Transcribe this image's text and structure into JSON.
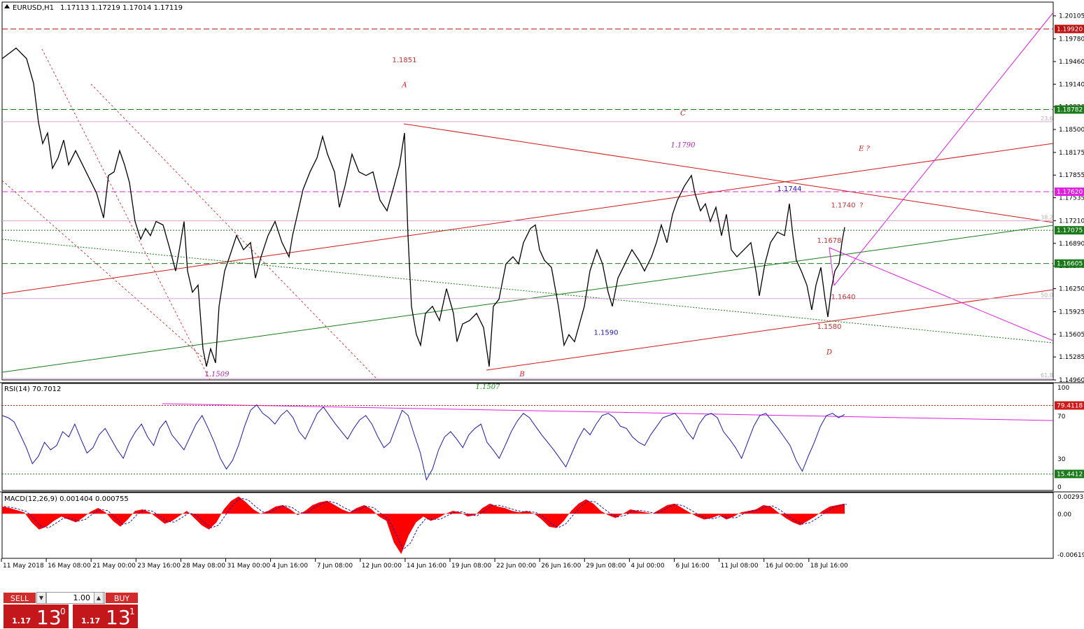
{
  "window": {
    "symbol_title": "EURUSD,H1",
    "ohlc": "1.17113 1.17219 1.17014 1.17119"
  },
  "trade_panel": {
    "sell_label": "SELL",
    "buy_label": "BUY",
    "lot_value": "1.00",
    "sell_price_small": "1.17",
    "sell_price_big": "13",
    "sell_price_sup": "0",
    "buy_price_small": "1.17",
    "buy_price_big": "13",
    "buy_price_sup": "1"
  },
  "colors": {
    "sell_bg": "#c3171c",
    "red_line": "#d01818",
    "green_line": "#1a7a1a",
    "magenta": "#e020e0",
    "rsi_line": "#1a1ab0",
    "macd_fill": "#ff0000",
    "price_line": "#000000"
  },
  "chart_data": [
    {
      "type": "candlestick-line",
      "symbol": "EURUSD",
      "timeframe": "H1",
      "ylim": [
        1.1496,
        1.203
      ],
      "y_ticks": [
        "1.20105",
        "1.19780",
        "1.19460",
        "1.19140",
        "1.18820",
        "1.18500",
        "1.18175",
        "1.17855",
        "1.17535",
        "1.17210",
        "1.16890",
        "1.16570",
        "1.16250",
        "1.15925",
        "1.15605",
        "1.15285",
        "1.14960"
      ],
      "x_labels": [
        "11 May 2018",
        "16 May 08:00",
        "21 May 00:00",
        "23 May 16:00",
        "28 May 08:00",
        "31 May 00:00",
        "4 Jun 16:00",
        "7 Jun 08:00",
        "12 Jun 00:00",
        "14 Jun 16:00",
        "19 Jun 08:00",
        "22 Jun 00:00",
        "26 Jun 16:00",
        "29 Jun 08:00",
        "4 Jul 00:00",
        "6 Jul 16:00",
        "11 Jul 08:00",
        "16 Jul 00:00",
        "18 Jul 16:00"
      ],
      "price_path": [
        [
          0,
          1.195
        ],
        [
          20,
          1.1965
        ],
        [
          35,
          1.195
        ],
        [
          45,
          1.1915
        ],
        [
          52,
          1.186
        ],
        [
          58,
          1.183
        ],
        [
          65,
          1.1845
        ],
        [
          72,
          1.1795
        ],
        [
          80,
          1.181
        ],
        [
          88,
          1.1835
        ],
        [
          95,
          1.18
        ],
        [
          105,
          1.182
        ],
        [
          115,
          1.18
        ],
        [
          125,
          1.178
        ],
        [
          135,
          1.176
        ],
        [
          145,
          1.1725
        ],
        [
          152,
          1.1785
        ],
        [
          160,
          1.179
        ],
        [
          168,
          1.182
        ],
        [
          175,
          1.18
        ],
        [
          182,
          1.1775
        ],
        [
          190,
          1.172
        ],
        [
          198,
          1.1695
        ],
        [
          205,
          1.171
        ],
        [
          212,
          1.17
        ],
        [
          220,
          1.172
        ],
        [
          230,
          1.1715
        ],
        [
          240,
          1.168
        ],
        [
          248,
          1.165
        ],
        [
          255,
          1.169
        ],
        [
          260,
          1.172
        ],
        [
          265,
          1.165
        ],
        [
          272,
          1.162
        ],
        [
          280,
          1.163
        ],
        [
          287,
          1.154
        ],
        [
          292,
          1.1515
        ],
        [
          298,
          1.154
        ],
        [
          305,
          1.152
        ],
        [
          310,
          1.16
        ],
        [
          318,
          1.165
        ],
        [
          325,
          1.167
        ],
        [
          335,
          1.17
        ],
        [
          345,
          1.168
        ],
        [
          355,
          1.169
        ],
        [
          362,
          1.164
        ],
        [
          370,
          1.167
        ],
        [
          380,
          1.17
        ],
        [
          390,
          1.172
        ],
        [
          400,
          1.169
        ],
        [
          410,
          1.167
        ],
        [
          415,
          1.17
        ],
        [
          422,
          1.173
        ],
        [
          430,
          1.1765
        ],
        [
          440,
          1.179
        ],
        [
          450,
          1.181
        ],
        [
          458,
          1.184
        ],
        [
          465,
          1.1815
        ],
        [
          475,
          1.179
        ],
        [
          482,
          1.174
        ],
        [
          490,
          1.177
        ],
        [
          500,
          1.1815
        ],
        [
          510,
          1.179
        ],
        [
          520,
          1.1785
        ],
        [
          530,
          1.179
        ],
        [
          540,
          1.175
        ],
        [
          550,
          1.1735
        ],
        [
          560,
          1.177
        ],
        [
          568,
          1.18
        ],
        [
          575,
          1.1845
        ],
        [
          580,
          1.17
        ],
        [
          585,
          1.16
        ],
        [
          592,
          1.156
        ],
        [
          598,
          1.1545
        ],
        [
          605,
          1.159
        ],
        [
          615,
          1.16
        ],
        [
          625,
          1.158
        ],
        [
          635,
          1.1625
        ],
        [
          645,
          1.159
        ],
        [
          650,
          1.155
        ],
        [
          658,
          1.1575
        ],
        [
          668,
          1.158
        ],
        [
          678,
          1.159
        ],
        [
          688,
          1.157
        ],
        [
          696,
          1.1515
        ],
        [
          702,
          1.16
        ],
        [
          710,
          1.161
        ],
        [
          720,
          1.166
        ],
        [
          730,
          1.167
        ],
        [
          738,
          1.166
        ],
        [
          745,
          1.169
        ],
        [
          755,
          1.171
        ],
        [
          762,
          1.1715
        ],
        [
          768,
          1.168
        ],
        [
          775,
          1.1665
        ],
        [
          785,
          1.1655
        ],
        [
          795,
          1.16
        ],
        [
          803,
          1.1545
        ],
        [
          810,
          1.156
        ],
        [
          818,
          1.155
        ],
        [
          825,
          1.1575
        ],
        [
          832,
          1.16
        ],
        [
          840,
          1.165
        ],
        [
          850,
          1.168
        ],
        [
          858,
          1.166
        ],
        [
          866,
          1.162
        ],
        [
          872,
          1.16
        ],
        [
          880,
          1.164
        ],
        [
          890,
          1.166
        ],
        [
          900,
          1.168
        ],
        [
          910,
          1.1665
        ],
        [
          918,
          1.165
        ],
        [
          928,
          1.167
        ],
        [
          935,
          1.169
        ],
        [
          942,
          1.1715
        ],
        [
          950,
          1.169
        ],
        [
          958,
          1.173
        ],
        [
          965,
          1.175
        ],
        [
          975,
          1.177
        ],
        [
          985,
          1.1785
        ],
        [
          990,
          1.176
        ],
        [
          998,
          1.1735
        ],
        [
          1005,
          1.1745
        ],
        [
          1012,
          1.172
        ],
        [
          1020,
          1.174
        ],
        [
          1028,
          1.17
        ],
        [
          1035,
          1.173
        ],
        [
          1042,
          1.168
        ],
        [
          1050,
          1.167
        ],
        [
          1060,
          1.168
        ],
        [
          1070,
          1.169
        ],
        [
          1078,
          1.1645
        ],
        [
          1082,
          1.1615
        ],
        [
          1090,
          1.166
        ],
        [
          1098,
          1.169
        ],
        [
          1108,
          1.1705
        ],
        [
          1118,
          1.17
        ],
        [
          1125,
          1.1745
        ],
        [
          1130,
          1.17
        ],
        [
          1135,
          1.1665
        ],
        [
          1142,
          1.165
        ],
        [
          1150,
          1.163
        ],
        [
          1157,
          1.1595
        ],
        [
          1163,
          1.163
        ],
        [
          1170,
          1.1655
        ],
        [
          1176,
          1.161
        ],
        [
          1180,
          1.1585
        ],
        [
          1185,
          1.1625
        ],
        [
          1190,
          1.165
        ],
        [
          1196,
          1.166
        ],
        [
          1200,
          1.169
        ],
        [
          1204,
          1.1712
        ]
      ],
      "horizontal_levels": [
        {
          "price": 1.1992,
          "label": "1.19920",
          "style": "dashed",
          "color": "#c01010"
        },
        {
          "price": 1.18782,
          "label": "1.18782",
          "style": "dashed",
          "color": "#1a7a1a"
        },
        {
          "price": 1.1762,
          "label": "1.17620",
          "style": "dashed",
          "color": "#e020e0"
        },
        {
          "price": 1.17075,
          "label": "1.17075",
          "style": "dotted",
          "color": "#1a7a1a"
        },
        {
          "price": 1.16605,
          "label": "1.16605",
          "style": "dashed",
          "color": "#1a7a1a"
        }
      ],
      "fib_levels": [
        {
          "price": 1.1861,
          "label": "23.6"
        },
        {
          "price": 1.1721,
          "label": "38.2"
        },
        {
          "price": 1.1611,
          "label": "50.0"
        },
        {
          "price": 1.1498,
          "label": "61.8"
        }
      ],
      "annotations": [
        {
          "text": "1.1851",
          "x": "14 Jun",
          "price": 1.1945
        },
        {
          "text": "A",
          "x": "14 Jun",
          "price": 1.191
        },
        {
          "text": "C",
          "x": "6 Jul",
          "price": 1.187
        },
        {
          "text": "1.1790",
          "x": "6 Jul",
          "price": 1.1825
        },
        {
          "text": "E ?",
          "x": "20 Jul",
          "price": 1.182
        },
        {
          "text": "1.1744",
          "x": "16 Jul",
          "price": 1.1763
        },
        {
          "text": "1.1740",
          "x": "18 Jul",
          "price": 1.174
        },
        {
          "text": "?",
          "x": "18 Jul",
          "price": 1.174
        },
        {
          "text": "1.1678",
          "x": "18 Jul",
          "price": 1.169
        },
        {
          "text": "1.1640",
          "x": "18 Jul",
          "price": 1.161
        },
        {
          "text": "1.1590",
          "x": "29 Jun",
          "price": 1.156
        },
        {
          "text": "1.1580",
          "x": "18 Jul",
          "price": 1.1568
        },
        {
          "text": "D",
          "x": "18 Jul",
          "price": 1.1532
        },
        {
          "text": "B",
          "x": "22 Jun",
          "price": 1.1501
        },
        {
          "text": "1.1509",
          "x": "29 May",
          "price": 1.1501
        },
        {
          "text": "1.1507",
          "x": "19 Jun",
          "price": 1.1483
        }
      ]
    },
    {
      "type": "line",
      "name": "RSI(14)",
      "value_text": "70.7012",
      "ylim": [
        0,
        100
      ],
      "y_ticks": [
        "100",
        "70",
        "30",
        "0"
      ],
      "levels": [
        {
          "value": 79.4118,
          "label": "79.4118"
        },
        {
          "value": 15.4412,
          "label": "15.4412"
        }
      ],
      "values": [
        70,
        68,
        64,
        52,
        40,
        25,
        32,
        45,
        38,
        42,
        55,
        50,
        62,
        48,
        35,
        40,
        52,
        58,
        48,
        38,
        30,
        45,
        55,
        62,
        50,
        42,
        58,
        65,
        52,
        45,
        38,
        50,
        62,
        70,
        58,
        45,
        30,
        20,
        28,
        42,
        60,
        75,
        80,
        72,
        68,
        62,
        70,
        75,
        68,
        55,
        48,
        60,
        72,
        78,
        70,
        62,
        55,
        48,
        58,
        66,
        70,
        62,
        50,
        40,
        45,
        60,
        75,
        70,
        52,
        35,
        10,
        20,
        38,
        50,
        55,
        48,
        40,
        52,
        58,
        62,
        45,
        38,
        30,
        42,
        55,
        65,
        72,
        68,
        60,
        52,
        45,
        38,
        30,
        22,
        35,
        48,
        58,
        52,
        62,
        70,
        72,
        68,
        60,
        58,
        50,
        45,
        42,
        52,
        60,
        68,
        70,
        72,
        65,
        55,
        48,
        62,
        70,
        72,
        68,
        55,
        48,
        40,
        30,
        45,
        60,
        70,
        72,
        65,
        58,
        50,
        42,
        28,
        18,
        32,
        45,
        60,
        70,
        72,
        68,
        71
      ]
    },
    {
      "type": "area",
      "name": "MACD(12,26,9)",
      "value_text": "0.001404 0.000755",
      "ylim": [
        -0.006193,
        0.002935
      ],
      "y_ticks": [
        "0.002935",
        "0.00",
        "-0.006193"
      ],
      "values": [
        0.001,
        0.0008,
        0.0005,
        0.0002,
        -0.0012,
        -0.0022,
        -0.0018,
        -0.001,
        -0.0004,
        -0.0008,
        -0.0012,
        -0.0005,
        0.0003,
        0.0008,
        0.0002,
        -0.001,
        -0.0018,
        -0.0008,
        0.0004,
        0.0006,
        0.0002,
        -0.0006,
        -0.0014,
        -0.001,
        -0.0003,
        0.0004,
        -0.0006,
        -0.0016,
        -0.0022,
        -0.0012,
        0.0006,
        0.0018,
        0.0024,
        0.0016,
        0.0006,
        0.0,
        0.0004,
        0.001,
        0.0012,
        0.0006,
        -0.0002,
        0.0004,
        0.0012,
        0.0016,
        0.0018,
        0.0012,
        0.0006,
        0.0002,
        0.0008,
        0.0012,
        0.0006,
        -0.0004,
        -0.001,
        -0.004,
        -0.0056,
        -0.003,
        -0.0012,
        -0.0004,
        -0.001,
        -0.0006,
        0.0,
        0.0004,
        0.0002,
        -0.0004,
        -0.0002,
        0.0008,
        0.0014,
        0.001,
        0.0008,
        0.0004,
        0.0002,
        0.0004,
        0.0,
        -0.0008,
        -0.0018,
        -0.002,
        -0.001,
        0.0004,
        0.0014,
        0.002,
        0.0014,
        0.0004,
        -0.0002,
        -0.0006,
        0.0,
        0.0006,
        0.0004,
        0.0002,
        0.0,
        0.0006,
        0.0012,
        0.0014,
        0.0008,
        0.0002,
        -0.0004,
        -0.0008,
        -0.0006,
        -0.0002,
        -0.0008,
        -0.0004,
        0.0002,
        0.0004,
        0.0006,
        0.0012,
        0.001,
        0.0002,
        -0.0006,
        -0.0012,
        -0.0016,
        -0.001,
        -0.0004,
        0.0004,
        0.001,
        0.0012,
        0.0014
      ]
    }
  ]
}
